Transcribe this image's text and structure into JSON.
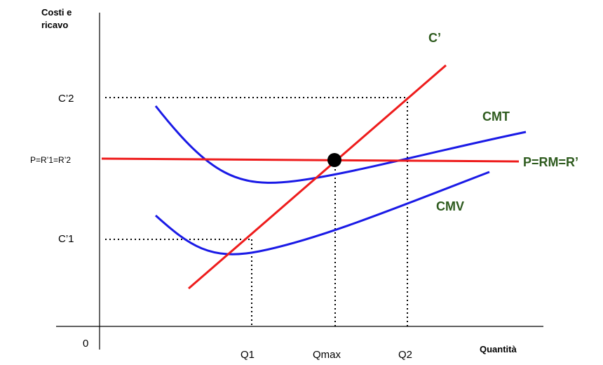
{
  "axes": {
    "y_label_line1": "Costi e",
    "y_label_line2": "ricavo",
    "x_label": "Quantità",
    "origin": "0"
  },
  "y_ticks": {
    "c2": "C’2",
    "price": "P=R’1=R’2",
    "c1": "C’1"
  },
  "x_ticks": {
    "q1": "Q1",
    "qmax": "Qmax",
    "q2": "Q2"
  },
  "curve_labels": {
    "marginal_cost": "C’",
    "average_total_cost": "CMT",
    "average_variable_cost": "CMV",
    "price_line": "P=RM=R’"
  },
  "colors": {
    "cost_line": "#ee1c1c",
    "average_curves": "#1a1ae6",
    "curve_label_text": "#2e5b1e",
    "axis": "#000000"
  }
}
